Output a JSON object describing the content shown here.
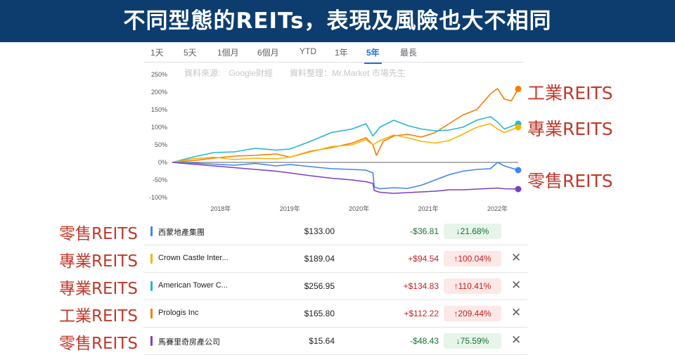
{
  "banner_title": "不同型態的REITs，表現及風險也大不相同",
  "range_tabs": [
    {
      "label": "1天"
    },
    {
      "label": "5天"
    },
    {
      "label": "1個月"
    },
    {
      "label": "6個月"
    },
    {
      "label": "YTD"
    },
    {
      "label": "1年"
    },
    {
      "label": "5年",
      "active": true
    },
    {
      "label": "最長"
    }
  ],
  "source_note": "資料來源:　Google財經　　資料整理：Mr.Market 市場先生",
  "legend_labels": [
    "工業REITS",
    "專業REITS",
    "零售REITS"
  ],
  "chart_data": {
    "type": "line",
    "y_ticks": [
      "250%",
      "200%",
      "150%",
      "100%",
      "50%",
      "0%",
      "-50%",
      "-100%"
    ],
    "x_ticks": [
      "2018年",
      "2019年",
      "2020年",
      "2021年",
      "2022年"
    ],
    "ylim": [
      -100,
      250
    ],
    "xlim": [
      2017.3,
      2022.3
    ],
    "zero_line": true,
    "series": [
      {
        "name": "Prologis Inc",
        "color": "#f57c00",
        "x": [
          2017.3,
          2017.6,
          2017.9,
          2018.2,
          2018.5,
          2018.8,
          2019.0,
          2019.3,
          2019.6,
          2019.9,
          2020.1,
          2020.2,
          2020.25,
          2020.35,
          2020.5,
          2020.7,
          2020.9,
          2021.1,
          2021.3,
          2021.5,
          2021.7,
          2021.9,
          2022.0,
          2022.1,
          2022.2,
          2022.3
        ],
        "values": [
          0,
          5,
          12,
          18,
          20,
          24,
          15,
          32,
          42,
          55,
          70,
          50,
          20,
          60,
          75,
          80,
          72,
          85,
          110,
          135,
          150,
          195,
          210,
          180,
          175,
          209
        ]
      },
      {
        "name": "American Tower C...",
        "color": "#26b5d6",
        "x": [
          2017.3,
          2017.6,
          2017.9,
          2018.2,
          2018.5,
          2018.8,
          2019.0,
          2019.3,
          2019.6,
          2019.9,
          2020.1,
          2020.2,
          2020.3,
          2020.5,
          2020.7,
          2020.9,
          2021.1,
          2021.3,
          2021.5,
          2021.7,
          2021.9,
          2022.0,
          2022.1,
          2022.3
        ],
        "values": [
          0,
          15,
          28,
          30,
          40,
          35,
          38,
          60,
          85,
          95,
          110,
          75,
          100,
          120,
          105,
          95,
          90,
          92,
          100,
          120,
          130,
          115,
          95,
          110
        ]
      },
      {
        "name": "Crown Castle Inter...",
        "color": "#f4b400",
        "x": [
          2017.3,
          2017.6,
          2017.9,
          2018.2,
          2018.5,
          2018.8,
          2019.0,
          2019.3,
          2019.6,
          2019.9,
          2020.1,
          2020.2,
          2020.3,
          2020.5,
          2020.7,
          2020.9,
          2021.1,
          2021.3,
          2021.5,
          2021.7,
          2021.9,
          2022.0,
          2022.1,
          2022.3
        ],
        "values": [
          0,
          10,
          15,
          8,
          12,
          10,
          15,
          30,
          45,
          50,
          65,
          50,
          62,
          78,
          70,
          60,
          55,
          62,
          80,
          100,
          110,
          95,
          85,
          100
        ]
      },
      {
        "name": "西蒙地產集團",
        "color": "#4285f4",
        "x": [
          2017.3,
          2017.6,
          2017.9,
          2018.2,
          2018.5,
          2018.8,
          2019.0,
          2019.3,
          2019.6,
          2019.9,
          2020.1,
          2020.2,
          2020.22,
          2020.3,
          2020.5,
          2020.7,
          2020.9,
          2021.1,
          2021.3,
          2021.5,
          2021.7,
          2021.9,
          2022.0,
          2022.1,
          2022.3
        ],
        "values": [
          0,
          -2,
          -5,
          -8,
          -3,
          -10,
          -6,
          -12,
          -18,
          -20,
          -22,
          -30,
          -70,
          -75,
          -72,
          -74,
          -65,
          -50,
          -35,
          -25,
          -20,
          -18,
          0,
          -10,
          -22
        ]
      },
      {
        "name": "馬賽里奇房產公司",
        "color": "#7e3fc4",
        "x": [
          2017.3,
          2017.6,
          2017.9,
          2018.2,
          2018.5,
          2018.8,
          2019.0,
          2019.3,
          2019.6,
          2019.9,
          2020.1,
          2020.2,
          2020.22,
          2020.3,
          2020.5,
          2020.7,
          2020.9,
          2021.1,
          2021.3,
          2021.5,
          2021.7,
          2021.9,
          2022.0,
          2022.1,
          2022.3
        ],
        "values": [
          0,
          -5,
          -10,
          -15,
          -20,
          -25,
          -30,
          -38,
          -45,
          -50,
          -55,
          -60,
          -80,
          -85,
          -88,
          -86,
          -84,
          -82,
          -78,
          -78,
          -76,
          -74,
          -73,
          -75,
          -76
        ]
      }
    ]
  },
  "rows": [
    {
      "label": "零售REITS",
      "name": "西蒙地產集團",
      "color": "#4285f4",
      "price": "$133.00",
      "change": "-$36.81",
      "pct": "↓21.68%",
      "dir": "neg",
      "close": false
    },
    {
      "label": "專業REITS",
      "name": "Crown Castle Inter...",
      "color": "#f4b400",
      "price": "$189.04",
      "change": "+$94.54",
      "pct": "↑100.04%",
      "dir": "pos",
      "close": true
    },
    {
      "label": "專業REITS",
      "name": "American Tower C...",
      "color": "#26b5d6",
      "price": "$256.95",
      "change": "+$134.83",
      "pct": "↑110.41%",
      "dir": "pos",
      "close": true
    },
    {
      "label": "工業REITS",
      "name": "Prologis Inc",
      "color": "#f57c00",
      "price": "$165.80",
      "change": "+$112.22",
      "pct": "↑209.44%",
      "dir": "pos",
      "close": true
    },
    {
      "label": "零售REITS",
      "name": "馬賽里奇房產公司",
      "color": "#7e3fc4",
      "price": "$15.64",
      "change": "-$48.43",
      "pct": "↓75.59%",
      "dir": "neg",
      "close": true
    }
  ],
  "close_icon": "close-icon"
}
